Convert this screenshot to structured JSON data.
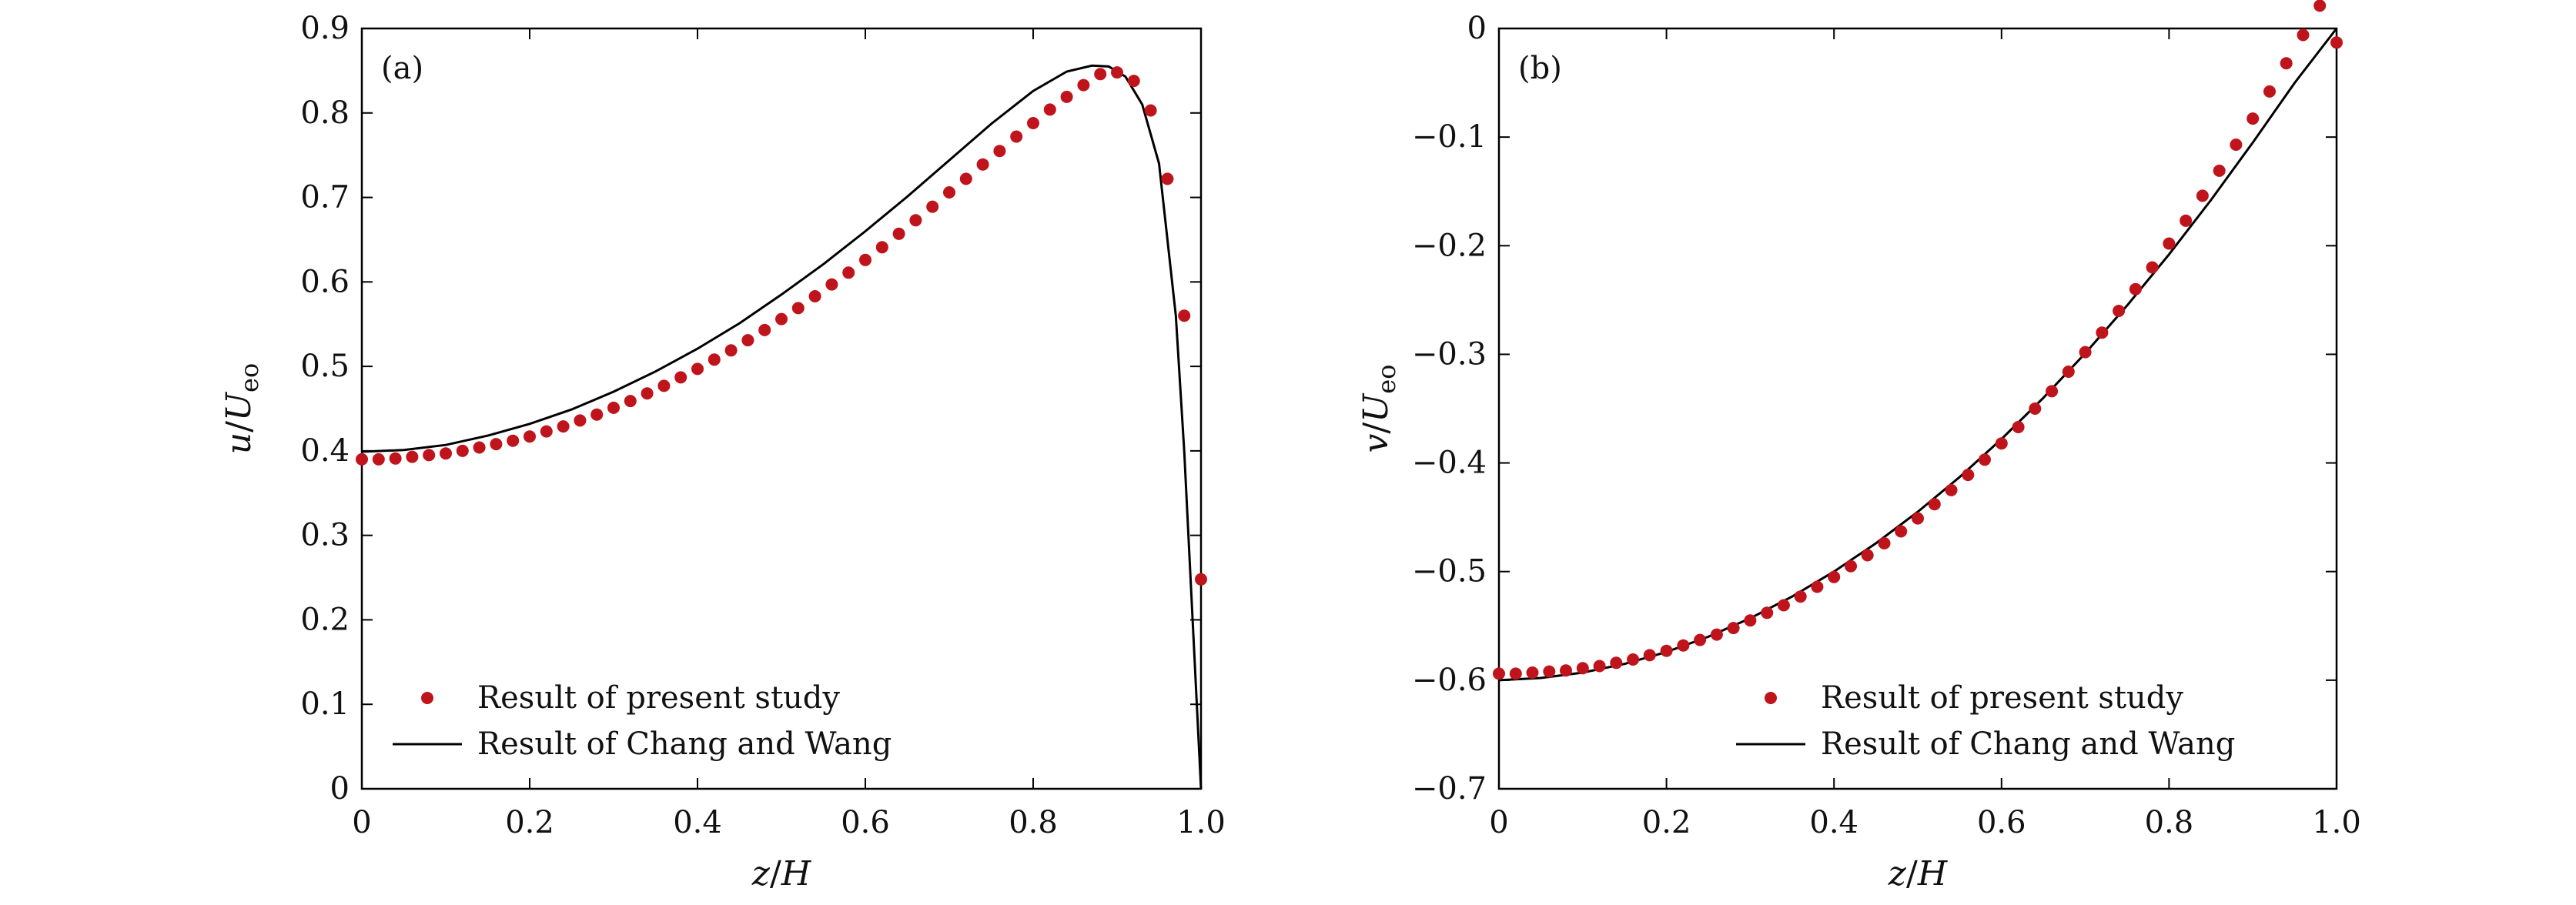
{
  "chart_data": [
    {
      "type": "scatter",
      "panel_label": "(a)",
      "xlabel": {
        "var": "z",
        "sep": "/",
        "den": "H"
      },
      "ylabel": {
        "var": "u",
        "sep": "/",
        "den": "U",
        "sub": "eo"
      },
      "xlim": [
        0,
        1.0
      ],
      "ylim": [
        0,
        0.9
      ],
      "xticks": [
        0,
        0.2,
        0.4,
        0.6,
        0.8,
        1.0
      ],
      "xtick_labels": [
        "0",
        "0.2",
        "0.4",
        "0.6",
        "0.8",
        "1.0"
      ],
      "yticks": [
        0,
        0.1,
        0.2,
        0.3,
        0.4,
        0.5,
        0.6,
        0.7,
        0.8,
        0.9
      ],
      "ytick_labels": [
        "0",
        "0.1",
        "0.2",
        "0.3",
        "0.4",
        "0.5",
        "0.6",
        "0.7",
        "0.8",
        "0.9"
      ],
      "legend_position": "bottom-left",
      "series": [
        {
          "name": "Result of present study",
          "kind": "points",
          "color": "#c0141c",
          "x": [
            0,
            0.02,
            0.04,
            0.06,
            0.08,
            0.1,
            0.12,
            0.14,
            0.16,
            0.18,
            0.2,
            0.22,
            0.24,
            0.26,
            0.28,
            0.3,
            0.32,
            0.34,
            0.36,
            0.38,
            0.4,
            0.42,
            0.44,
            0.46,
            0.48,
            0.5,
            0.52,
            0.54,
            0.56,
            0.58,
            0.6,
            0.62,
            0.64,
            0.66,
            0.68,
            0.7,
            0.72,
            0.74,
            0.76,
            0.78,
            0.8,
            0.82,
            0.84,
            0.86,
            0.88,
            0.9,
            0.92,
            0.94,
            0.96,
            0.98,
            1.0
          ],
          "y": [
            0.39,
            0.39,
            0.391,
            0.393,
            0.395,
            0.397,
            0.4,
            0.404,
            0.408,
            0.412,
            0.417,
            0.423,
            0.429,
            0.436,
            0.443,
            0.451,
            0.459,
            0.468,
            0.477,
            0.487,
            0.497,
            0.508,
            0.519,
            0.531,
            0.543,
            0.556,
            0.569,
            0.583,
            0.597,
            0.611,
            0.626,
            0.641,
            0.657,
            0.673,
            0.689,
            0.706,
            0.722,
            0.739,
            0.755,
            0.772,
            0.788,
            0.804,
            0.819,
            0.833,
            0.846,
            0.848,
            0.838,
            0.803,
            0.722,
            0.56,
            0.248
          ]
        },
        {
          "name": "Result of Chang and Wang",
          "kind": "line",
          "color": "#000000",
          "x": [
            0,
            0.05,
            0.1,
            0.15,
            0.2,
            0.25,
            0.3,
            0.35,
            0.4,
            0.45,
            0.5,
            0.55,
            0.6,
            0.65,
            0.7,
            0.75,
            0.8,
            0.84,
            0.87,
            0.89,
            0.91,
            0.93,
            0.95,
            0.97,
            0.98,
            0.99,
            1.0
          ],
          "y": [
            0.399,
            0.401,
            0.407,
            0.418,
            0.432,
            0.449,
            0.47,
            0.494,
            0.521,
            0.551,
            0.585,
            0.621,
            0.66,
            0.701,
            0.744,
            0.787,
            0.826,
            0.849,
            0.856,
            0.855,
            0.843,
            0.81,
            0.74,
            0.56,
            0.4,
            0.2,
            0.0
          ]
        }
      ]
    },
    {
      "type": "scatter",
      "panel_label": "(b)",
      "xlabel": {
        "var": "z",
        "sep": "/",
        "den": "H"
      },
      "ylabel": {
        "var": "v",
        "sep": "/",
        "den": "U",
        "sub": "eo"
      },
      "xlim": [
        0,
        1.0
      ],
      "ylim": [
        -0.7,
        0
      ],
      "xticks": [
        0,
        0.2,
        0.4,
        0.6,
        0.8,
        1.0
      ],
      "xtick_labels": [
        "0",
        "0.2",
        "0.4",
        "0.6",
        "0.8",
        "1.0"
      ],
      "yticks": [
        0,
        -0.1,
        -0.2,
        -0.3,
        -0.4,
        -0.5,
        -0.6,
        -0.7
      ],
      "ytick_labels": [
        "0",
        "−0.1",
        "−0.2",
        "−0.3",
        "−0.4",
        "−0.5",
        "−0.6",
        "−0.7"
      ],
      "legend_position": "bottom-right",
      "series": [
        {
          "name": "Result of present study",
          "kind": "points",
          "color": "#c0141c",
          "x": [
            0,
            0.02,
            0.04,
            0.06,
            0.08,
            0.1,
            0.12,
            0.14,
            0.16,
            0.18,
            0.2,
            0.22,
            0.24,
            0.26,
            0.28,
            0.3,
            0.32,
            0.34,
            0.36,
            0.38,
            0.4,
            0.42,
            0.44,
            0.46,
            0.48,
            0.5,
            0.52,
            0.54,
            0.56,
            0.58,
            0.6,
            0.62,
            0.64,
            0.66,
            0.68,
            0.7,
            0.72,
            0.74,
            0.76,
            0.78,
            0.8,
            0.82,
            0.84,
            0.86,
            0.88,
            0.9,
            0.92,
            0.94,
            0.96,
            0.98,
            1.0
          ],
          "y": [
            -0.594,
            -0.594,
            -0.593,
            -0.592,
            -0.591,
            -0.589,
            -0.587,
            -0.584,
            -0.581,
            -0.577,
            -0.573,
            -0.568,
            -0.563,
            -0.558,
            -0.552,
            -0.545,
            -0.538,
            -0.531,
            -0.523,
            -0.514,
            -0.505,
            -0.495,
            -0.485,
            -0.474,
            -0.463,
            -0.451,
            -0.438,
            -0.425,
            -0.411,
            -0.397,
            -0.382,
            -0.367,
            -0.35,
            -0.334,
            -0.316,
            -0.298,
            -0.28,
            -0.26,
            -0.24,
            -0.22,
            -0.198,
            -0.177,
            -0.154,
            -0.131,
            -0.107,
            -0.083,
            -0.058,
            -0.032,
            -0.006,
            0.021,
            -0.013
          ]
        },
        {
          "name": "Result of Chang and Wang",
          "kind": "line",
          "color": "#000000",
          "x": [
            0,
            0.05,
            0.1,
            0.15,
            0.2,
            0.25,
            0.3,
            0.35,
            0.4,
            0.45,
            0.5,
            0.55,
            0.6,
            0.65,
            0.7,
            0.75,
            0.8,
            0.85,
            0.9,
            0.95,
            1.0
          ],
          "y": [
            -0.6,
            -0.598,
            -0.593,
            -0.585,
            -0.574,
            -0.56,
            -0.543,
            -0.523,
            -0.5,
            -0.474,
            -0.445,
            -0.413,
            -0.378,
            -0.34,
            -0.299,
            -0.255,
            -0.208,
            -0.158,
            -0.105,
            -0.05,
            0.0
          ]
        }
      ]
    }
  ]
}
